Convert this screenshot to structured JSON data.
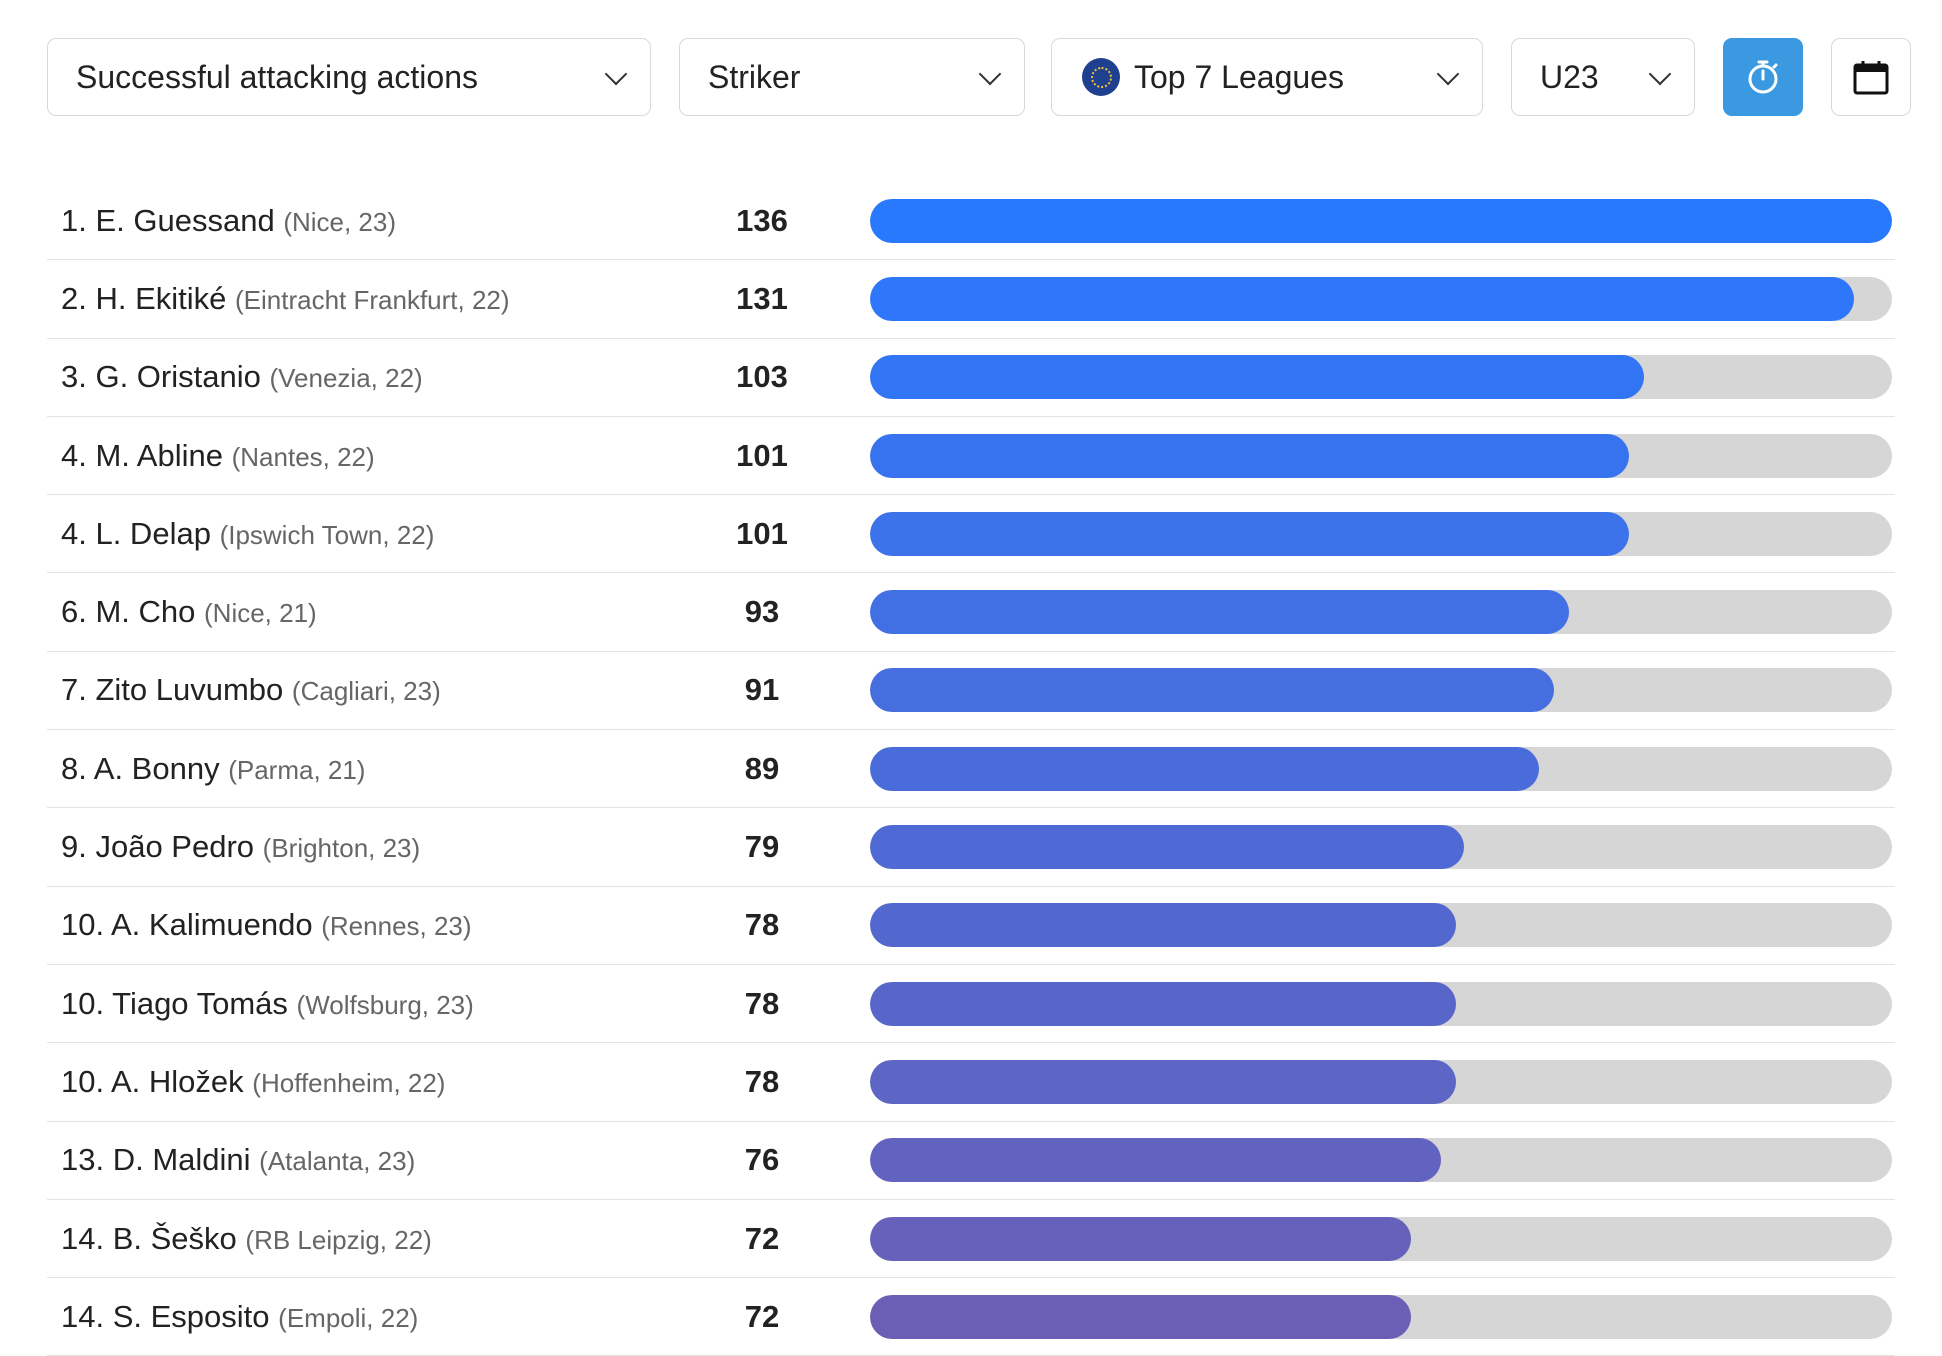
{
  "filters": {
    "metric": "Successful attacking actions",
    "position": "Striker",
    "league": "Top 7 Leagues",
    "age": "U23",
    "timer_icon": "stopwatch-icon",
    "calendar_icon": "calendar-icon"
  },
  "colors": {
    "bar_start": "#2979ff",
    "bar_end": "#6b5fb5",
    "track": "#d6d6d6",
    "active_button": "#3a99e0"
  },
  "chart_data": {
    "type": "bar",
    "orientation": "horizontal",
    "max_value": 136,
    "rows": [
      {
        "rank": "1.",
        "name": "E. Guessand",
        "meta": "(Nice, 23)",
        "value": 136
      },
      {
        "rank": "2.",
        "name": "H. Ekitiké",
        "meta": "(Eintracht Frankfurt, 22)",
        "value": 131
      },
      {
        "rank": "3.",
        "name": "G. Oristanio",
        "meta": "(Venezia, 22)",
        "value": 103
      },
      {
        "rank": "4.",
        "name": "M. Abline",
        "meta": "(Nantes, 22)",
        "value": 101
      },
      {
        "rank": "4.",
        "name": "L. Delap",
        "meta": "(Ipswich Town, 22)",
        "value": 101
      },
      {
        "rank": "6.",
        "name": "M. Cho",
        "meta": "(Nice, 21)",
        "value": 93
      },
      {
        "rank": "7.",
        "name": "Zito Luvumbo",
        "meta": "(Cagliari, 23)",
        "value": 91
      },
      {
        "rank": "8.",
        "name": "A. Bonny",
        "meta": "(Parma, 21)",
        "value": 89
      },
      {
        "rank": "9.",
        "name": "João Pedro",
        "meta": "(Brighton, 23)",
        "value": 79
      },
      {
        "rank": "10.",
        "name": "A. Kalimuendo",
        "meta": "(Rennes, 23)",
        "value": 78
      },
      {
        "rank": "10.",
        "name": "Tiago Tomás",
        "meta": "(Wolfsburg, 23)",
        "value": 78
      },
      {
        "rank": "10.",
        "name": "A. Hložek",
        "meta": "(Hoffenheim, 22)",
        "value": 78
      },
      {
        "rank": "13.",
        "name": "D. Maldini",
        "meta": "(Atalanta, 23)",
        "value": 76
      },
      {
        "rank": "14.",
        "name": "B. Šeško",
        "meta": "(RB Leipzig, 22)",
        "value": 72
      },
      {
        "rank": "14.",
        "name": "S. Esposito",
        "meta": "(Empoli, 22)",
        "value": 72
      }
    ]
  }
}
